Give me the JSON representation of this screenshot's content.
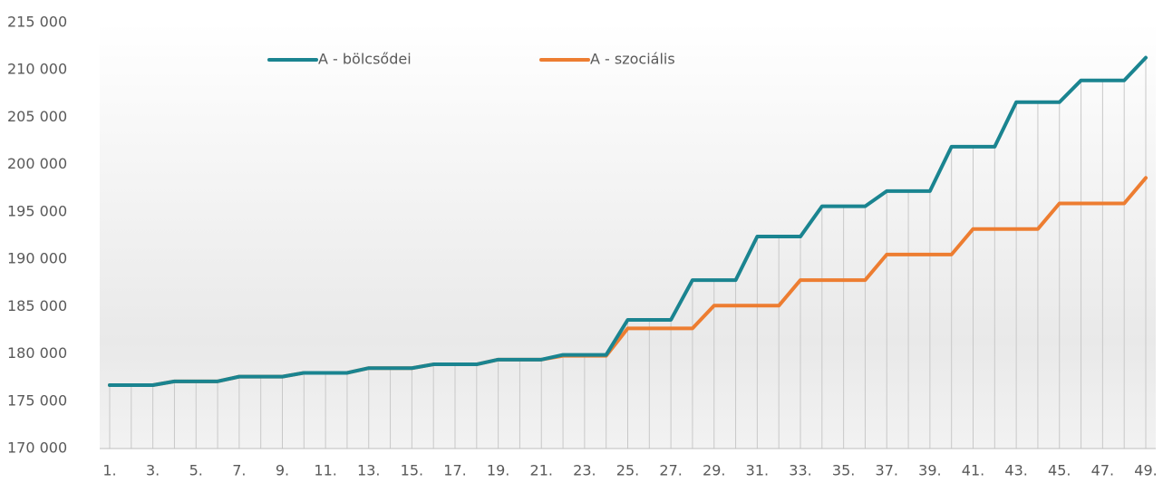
{
  "chart_data": {
    "type": "line",
    "categories": [
      "1.",
      null,
      "3.",
      null,
      "5.",
      null,
      "7.",
      null,
      "9.",
      null,
      "11.",
      null,
      "13.",
      null,
      "15.",
      null,
      "17.",
      null,
      "19.",
      null,
      "21.",
      null,
      "23.",
      null,
      "25.",
      null,
      "27.",
      null,
      "29.",
      null,
      "31.",
      null,
      "33.",
      null,
      "35.",
      null,
      "37.",
      null,
      "39.",
      null,
      "41.",
      null,
      "43.",
      null,
      "45.",
      null,
      "47.",
      null,
      "49."
    ],
    "series": [
      {
        "name": "A - bölcsődei",
        "color": "#1a8490",
        "values": [
          176700,
          176700,
          176700,
          177100,
          177100,
          177100,
          177600,
          177600,
          177600,
          178000,
          178000,
          178000,
          178500,
          178500,
          178500,
          178900,
          178900,
          178900,
          179400,
          179400,
          179400,
          179900,
          179900,
          179900,
          183600,
          183600,
          183600,
          187800,
          187800,
          187800,
          192400,
          192400,
          192400,
          195600,
          195600,
          195600,
          197200,
          197200,
          197200,
          201900,
          201900,
          201900,
          206600,
          206600,
          206600,
          208900,
          208900,
          208900,
          211300
        ]
      },
      {
        "name": "A - szociális",
        "color": "#ed7d31",
        "values": [
          176700,
          176700,
          176700,
          177100,
          177100,
          177100,
          177600,
          177600,
          177600,
          178000,
          178000,
          178000,
          178500,
          178500,
          178500,
          178900,
          178900,
          178900,
          179400,
          179400,
          179400,
          179800,
          179800,
          179800,
          182700,
          182700,
          182700,
          182700,
          185100,
          185100,
          185100,
          185100,
          187800,
          187800,
          187800,
          187800,
          190500,
          190500,
          190500,
          190500,
          193200,
          193200,
          193200,
          193200,
          195900,
          195900,
          195900,
          195900,
          198600
        ]
      }
    ],
    "ylim": [
      170000,
      215000
    ],
    "yticks": [
      {
        "value": 170000,
        "label": "170 000"
      },
      {
        "value": 175000,
        "label": "175 000"
      },
      {
        "value": 180000,
        "label": "180 000"
      },
      {
        "value": 185000,
        "label": "185 000"
      },
      {
        "value": 190000,
        "label": "190 000"
      },
      {
        "value": 195000,
        "label": "195 000"
      },
      {
        "value": 200000,
        "label": "200 000"
      },
      {
        "value": 205000,
        "label": "205 000"
      },
      {
        "value": 210000,
        "label": "210 000"
      },
      {
        "value": 215000,
        "label": "215 000"
      }
    ],
    "drop_lines": true
  }
}
